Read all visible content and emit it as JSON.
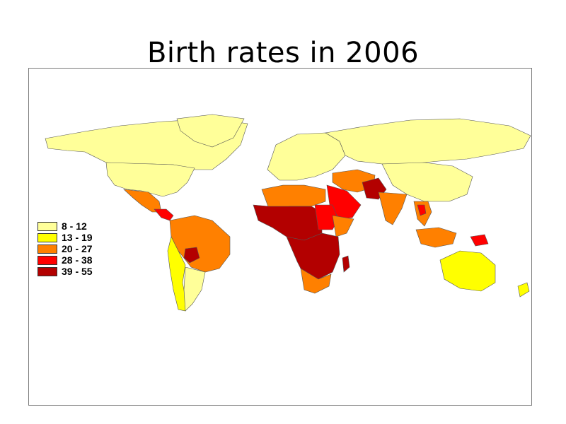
{
  "title": "Birth rates in 2006",
  "legend": [
    {
      "label": "8 - 12",
      "color": "#ffff99"
    },
    {
      "label": "13 - 19",
      "color": "#ffff00"
    },
    {
      "label": "20 - 27",
      "color": "#ff8000"
    },
    {
      "label": "28 - 38",
      "color": "#ff0000"
    },
    {
      "label": "39 - 55",
      "color": "#b30000"
    }
  ]
}
